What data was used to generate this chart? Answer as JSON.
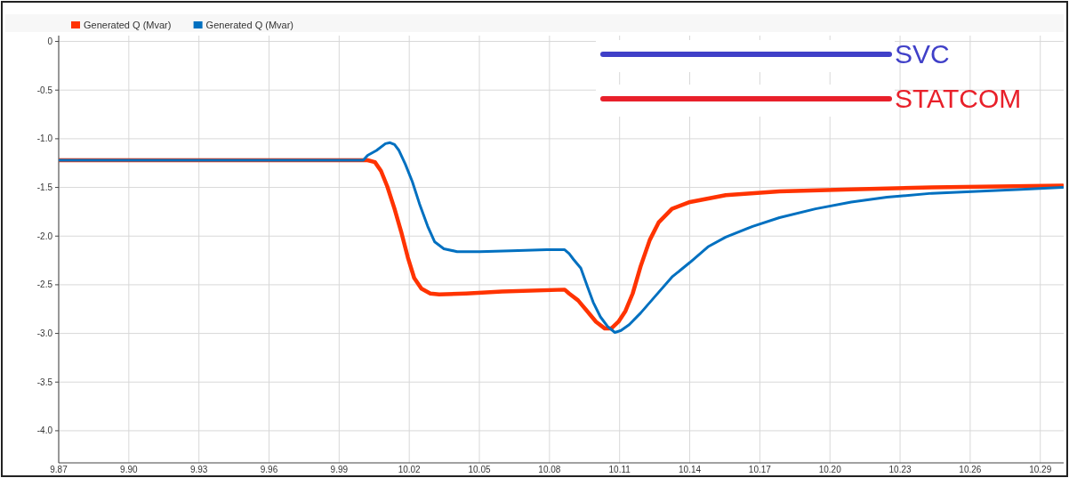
{
  "chart_data": {
    "type": "line",
    "legend": "top left",
    "grid": true,
    "marker": "none",
    "line_style": "solid",
    "xlim": [
      9.87,
      10.3
    ],
    "ylim": [
      -4.33,
      0.06
    ],
    "xticks": [
      9.87,
      {
        "value": 9.9,
        "label": "9.90"
      },
      9.93,
      9.96,
      9.99,
      10.02,
      10.05,
      10.08,
      10.11,
      10.14,
      10.17,
      {
        "value": 10.2,
        "label": "10.20"
      },
      10.23,
      10.26,
      10.29
    ],
    "yticks": [
      0,
      -0.5,
      {
        "value": -1,
        "label": "-1.0"
      },
      -1.5,
      {
        "value": -2,
        "label": "-2.0"
      },
      -2.5,
      {
        "value": -3,
        "label": "-3.0"
      },
      -3.5,
      {
        "value": -4,
        "label": "-4.0"
      }
    ],
    "annotations": [
      "SVC",
      "STATCOM"
    ],
    "series": [
      {
        "name": "Generated Q (Mvar)",
        "color": "#ff3300",
        "x": [
          9.87,
          10.0003,
          10.0022,
          10.0053,
          10.0079,
          10.0106,
          10.0137,
          10.0167,
          10.0194,
          10.0221,
          10.0252,
          10.029,
          10.0328,
          10.0443,
          10.0597,
          10.0865,
          10.0884,
          10.0922,
          10.0961,
          10.0999,
          10.1037,
          10.1064,
          10.1095,
          10.1125,
          10.1156,
          10.119,
          10.1229,
          10.1267,
          10.1324,
          10.1401,
          10.1554,
          10.1784,
          10.2091,
          10.2436,
          10.2995
        ],
        "values": [
          -1.22,
          -1.22,
          -1.22,
          -1.24,
          -1.33,
          -1.49,
          -1.72,
          -1.97,
          -2.22,
          -2.43,
          -2.54,
          -2.59,
          -2.6,
          -2.59,
          -2.57,
          -2.55,
          -2.59,
          -2.66,
          -2.77,
          -2.88,
          -2.95,
          -2.95,
          -2.88,
          -2.77,
          -2.59,
          -2.31,
          -2.04,
          -1.86,
          -1.72,
          -1.65,
          -1.58,
          -1.54,
          -1.52,
          -1.5,
          -1.48
        ]
      },
      {
        "name": "Generated Q (Mvar)",
        "color": "#0070c0",
        "x": [
          9.87,
          10.0003,
          10.0022,
          10.006,
          10.0098,
          10.0118,
          10.0137,
          10.0156,
          10.0183,
          10.0213,
          10.0244,
          10.0279,
          10.0309,
          10.0348,
          10.0405,
          10.0501,
          10.0635,
          10.0788,
          10.0865,
          10.0884,
          10.0903,
          10.0934,
          10.0961,
          10.0987,
          10.1018,
          10.1049,
          10.108,
          10.1106,
          10.1141,
          10.119,
          10.1248,
          10.1324,
          10.1401,
          10.1478,
          10.1554,
          10.1669,
          10.1784,
          10.1938,
          10.2091,
          10.2244,
          10.2436,
          10.2627,
          10.2819,
          10.2995
        ],
        "values": [
          -1.22,
          -1.22,
          -1.17,
          -1.12,
          -1.05,
          -1.04,
          -1.06,
          -1.12,
          -1.26,
          -1.44,
          -1.67,
          -1.9,
          -2.06,
          -2.13,
          -2.16,
          -2.16,
          -2.15,
          -2.14,
          -2.14,
          -2.18,
          -2.24,
          -2.33,
          -2.51,
          -2.68,
          -2.83,
          -2.93,
          -2.99,
          -2.97,
          -2.91,
          -2.79,
          -2.63,
          -2.42,
          -2.27,
          -2.11,
          -2.01,
          -1.9,
          -1.81,
          -1.72,
          -1.65,
          -1.6,
          -1.56,
          -1.54,
          -1.52,
          -1.5
        ]
      }
    ]
  }
}
